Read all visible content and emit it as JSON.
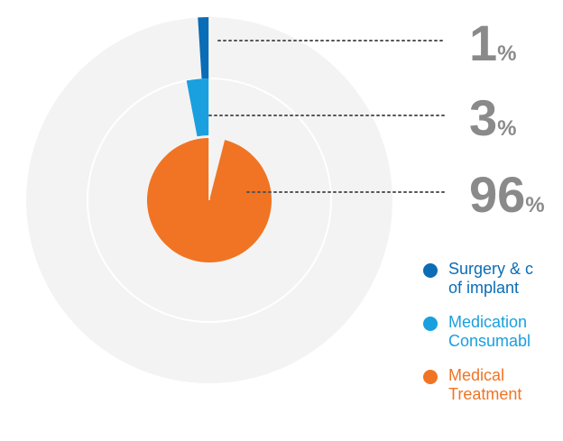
{
  "chart_data": {
    "type": "pie",
    "series": [
      {
        "name": "Surgery & cost of implant",
        "value": 1,
        "display": "1",
        "color": "#0a6db5"
      },
      {
        "name": "Medication & Consumables",
        "value": 3,
        "display": "3",
        "color": "#1aa0de"
      },
      {
        "name": "Medical Treatment",
        "value": 96,
        "display": "96",
        "color": "#f07423"
      }
    ],
    "unit": "%"
  },
  "legend": {
    "items": [
      {
        "line1": "Surgery & c",
        "line2": "of implant",
        "color": "#0a6db5"
      },
      {
        "line1": "Medication",
        "line2": "Consumabl",
        "color": "#1aa0de"
      },
      {
        "line1": "Medical",
        "line2": "Treatment",
        "color": "#f07423"
      }
    ]
  },
  "colors": {
    "ring_background": "#f3f3f3",
    "leader_line": "#555555",
    "value_text": "#8a8a8a"
  }
}
